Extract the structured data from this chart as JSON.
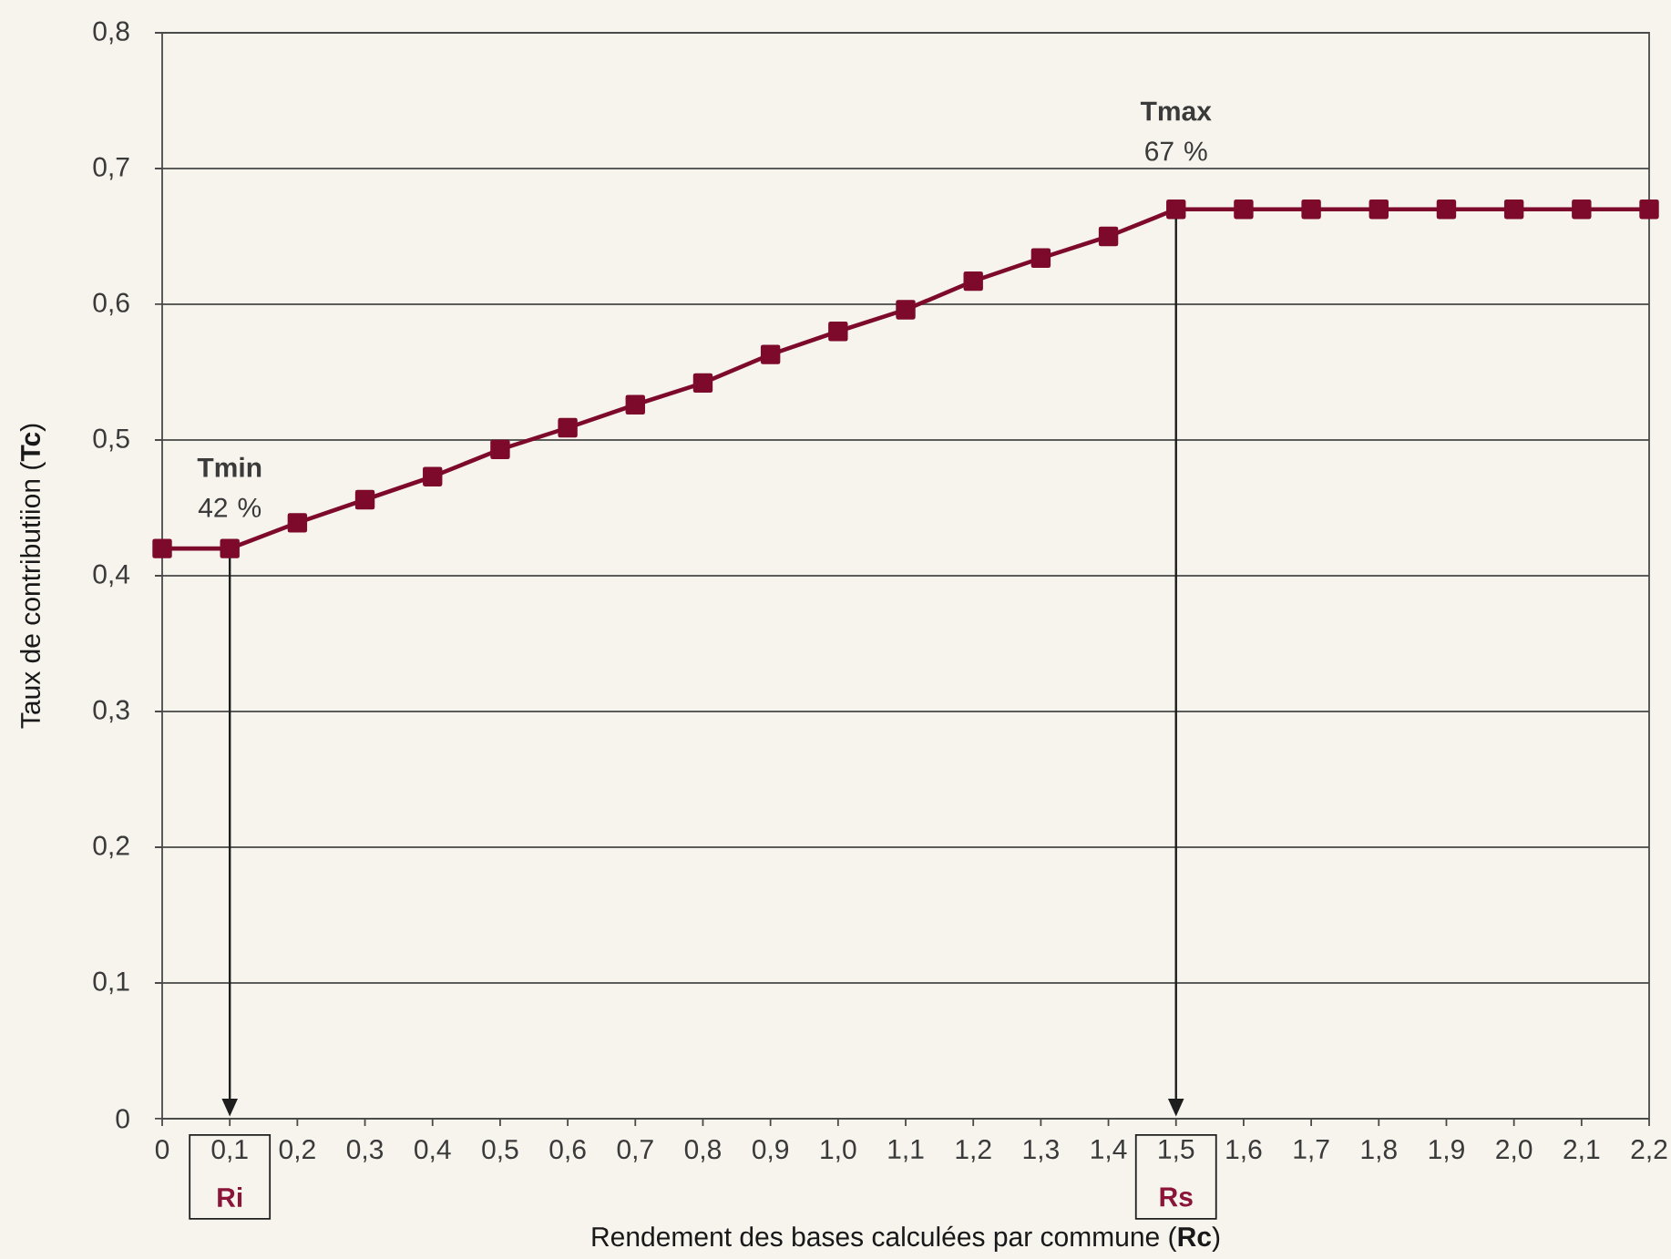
{
  "chart_data": {
    "type": "line",
    "xlabel": "Rendement des bases calculées par commune (**Rc**)",
    "ylabel": "Taux de contributiion (**Tc**)",
    "x": [
      0,
      0.1,
      0.2,
      0.3,
      0.4,
      0.5,
      0.6,
      0.7,
      0.8,
      0.9,
      1.0,
      1.1,
      1.2,
      1.3,
      1.4,
      1.5,
      1.6,
      1.7,
      1.8,
      1.9,
      2.0,
      2.1,
      2.2
    ],
    "series": [
      {
        "color": "#7d0a2b",
        "values": [
          0.42,
          0.42,
          0.439,
          0.456,
          0.473,
          0.493,
          0.509,
          0.526,
          0.542,
          0.563,
          0.58,
          0.596,
          0.617,
          0.634,
          0.65,
          0.67,
          0.67,
          0.67,
          0.67,
          0.67,
          0.67,
          0.67,
          0.67
        ]
      }
    ],
    "xlim": [
      0,
      2.2
    ],
    "ylim": [
      0,
      0.8
    ],
    "xticks": [
      0,
      {
        "value": 0.1,
        "label": "0,1"
      },
      {
        "value": 0.2,
        "label": "0,2"
      },
      {
        "value": 0.3,
        "label": "0,3"
      },
      {
        "value": 0.4,
        "label": "0,4"
      },
      {
        "value": 0.5,
        "label": "0,5"
      },
      {
        "value": 0.6,
        "label": "0,6"
      },
      {
        "value": 0.7,
        "label": "0,7"
      },
      {
        "value": 0.8,
        "label": "0,8"
      },
      {
        "value": 0.9,
        "label": "0,9"
      },
      {
        "value": 1.0,
        "label": "1,0"
      },
      {
        "value": 1.1,
        "label": "1,1"
      },
      {
        "value": 1.2,
        "label": "1,2"
      },
      {
        "value": 1.3,
        "label": "1,3"
      },
      {
        "value": 1.4,
        "label": "1,4"
      },
      {
        "value": 1.5,
        "label": "1,5"
      },
      {
        "value": 1.6,
        "label": "1,6"
      },
      {
        "value": 1.7,
        "label": "1,7"
      },
      {
        "value": 1.8,
        "label": "1,8"
      },
      {
        "value": 1.9,
        "label": "1,9"
      },
      {
        "value": 2.0,
        "label": "2,0"
      },
      {
        "value": 2.1,
        "label": "2,1"
      },
      {
        "value": 2.2,
        "label": "2,2"
      }
    ],
    "yticks": [
      0,
      {
        "value": 0.1,
        "label": "0,1"
      },
      {
        "value": 0.2,
        "label": "0,2"
      },
      {
        "value": 0.3,
        "label": "0,3"
      },
      {
        "value": 0.4,
        "label": "0,4"
      },
      {
        "value": 0.5,
        "label": "0,5"
      },
      {
        "value": 0.6,
        "label": "0,6"
      },
      {
        "value": 0.7,
        "label": "0,7"
      },
      {
        "value": 0.8,
        "label": "0,8"
      }
    ],
    "grid": "y",
    "marker": "square",
    "line_style": "solid",
    "annotations": [
      {
        "text": "**Tmin** 42 %",
        "x": 0.1,
        "y": 0.42
      },
      {
        "text": "**Tmax** 67 %",
        "x": 1.5,
        "y": 0.67
      }
    ],
    "ref_lines": [
      {
        "axis": "x",
        "value": 0.1,
        "label": "Ri",
        "color": "#1e1e1e"
      },
      {
        "axis": "x",
        "value": 1.5,
        "label": "Rs",
        "color": "#1e1e1e"
      }
    ]
  }
}
